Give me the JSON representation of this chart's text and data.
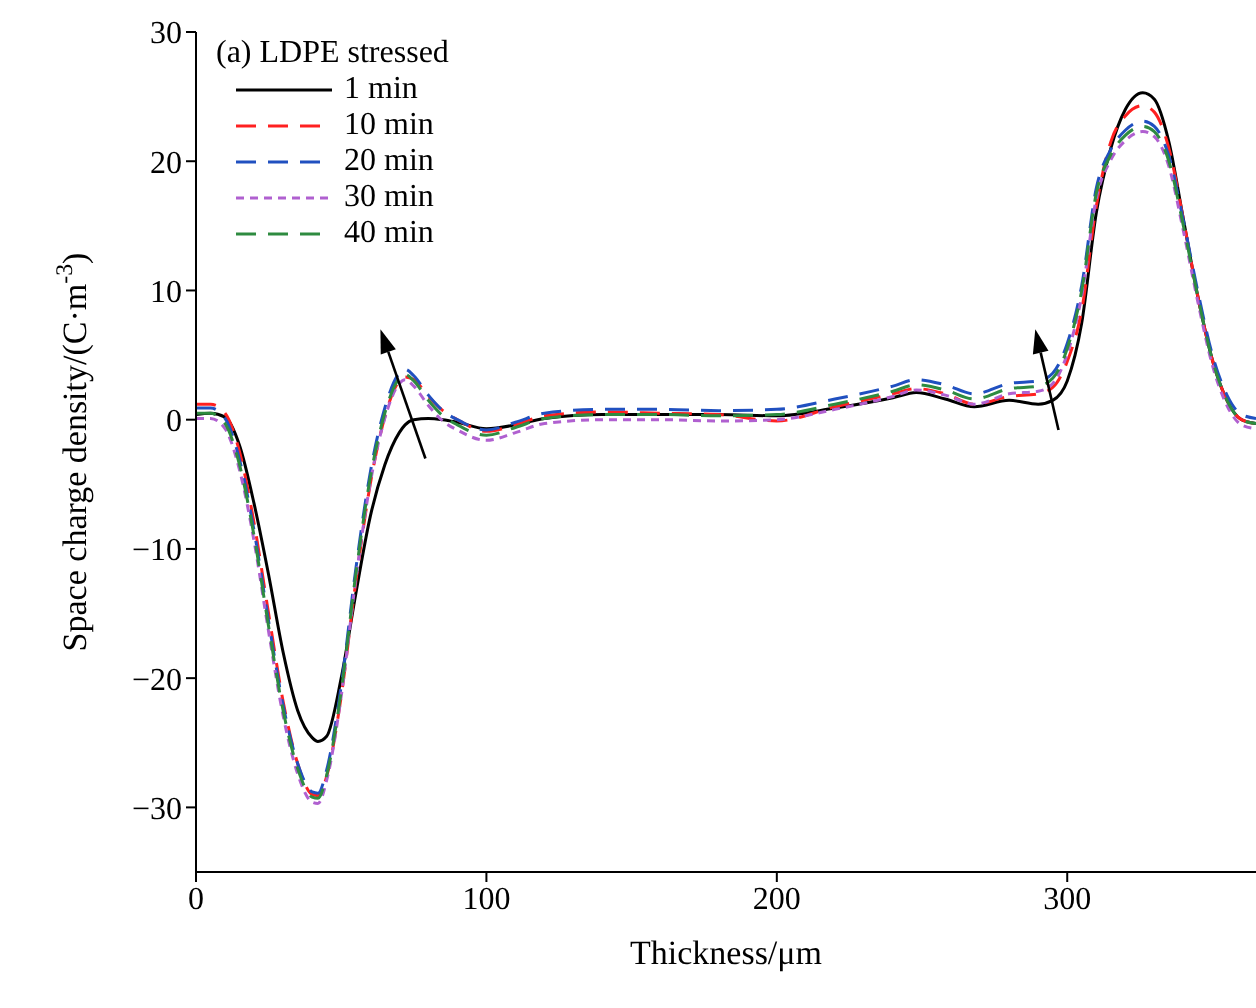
{
  "chart_data": {
    "type": "line",
    "title": "(a) LDPE stressed",
    "xlabel": "Thickness/μm",
    "ylabel": "Space charge density/(C·m$^{-3}$)",
    "x": [
      0,
      5,
      10,
      15,
      20,
      25,
      30,
      35,
      40,
      42,
      45,
      50,
      55,
      60,
      65,
      70,
      72,
      75,
      80,
      85,
      90,
      100,
      110,
      120,
      140,
      160,
      180,
      200,
      220,
      240,
      248,
      258,
      268,
      280,
      290,
      295,
      300,
      305,
      310,
      315,
      320,
      326,
      330,
      335,
      340,
      345,
      350,
      355,
      360,
      365
    ],
    "series": [
      {
        "name": "1 min",
        "color": "#000000",
        "line_style": "solid",
        "values": [
          0.4,
          0.5,
          0.2,
          -2,
          -6.5,
          -12,
          -18,
          -22.5,
          -24.6,
          -24.9,
          -24.5,
          -20,
          -13.5,
          -7.5,
          -3.5,
          -1,
          -0.4,
          0,
          0.1,
          0,
          -0.2,
          -0.7,
          -0.4,
          0.1,
          0.4,
          0.4,
          0.4,
          0.3,
          0.9,
          1.7,
          2.1,
          1.6,
          1,
          1.5,
          1.2,
          1.5,
          3,
          7.5,
          16,
          21,
          24,
          25.3,
          24.8,
          21.5,
          15.5,
          9.5,
          4.6,
          1.5,
          0,
          -0.3
        ]
      },
      {
        "name": "10 min",
        "color": "#ff2020",
        "line_style": "dashed",
        "values": [
          1.2,
          1.2,
          0.5,
          -2.5,
          -8,
          -15,
          -21.8,
          -26.6,
          -29,
          -29.1,
          -27.6,
          -21.4,
          -12.6,
          -5,
          0.2,
          3,
          3.3,
          3.1,
          1.8,
          0.7,
          0,
          -0.9,
          -0.4,
          0.3,
          0.6,
          0.5,
          0.4,
          -0.1,
          1,
          2,
          2.4,
          2,
          1.2,
          1.8,
          2,
          2.5,
          4.5,
          8.5,
          16.5,
          21.5,
          23.5,
          24.3,
          23.8,
          21,
          15.5,
          9.5,
          4.6,
          1.5,
          0,
          -0.3
        ]
      },
      {
        "name": "20 min",
        "color": "#2050c0",
        "line_style": "dashed",
        "values": [
          0.9,
          0.9,
          0.1,
          -3.1,
          -8.6,
          -15.6,
          -22.1,
          -26.6,
          -28.8,
          -28.9,
          -27.1,
          -20.6,
          -11.6,
          -4.1,
          0.9,
          3.6,
          3.9,
          3.4,
          1.9,
          0.7,
          0,
          -0.8,
          -0.2,
          0.5,
          0.8,
          0.8,
          0.7,
          0.8,
          1.6,
          2.6,
          3.1,
          2.7,
          2,
          2.8,
          3,
          3.6,
          5.9,
          10.4,
          17.9,
          20.9,
          22.4,
          23.1,
          22.7,
          20.4,
          15.4,
          9.9,
          5,
          1.9,
          0.4,
          0.1
        ]
      },
      {
        "name": "30 min",
        "color": "#b060d0",
        "line_style": "dotted",
        "values": [
          0.1,
          0.1,
          -0.7,
          -3.9,
          -9.4,
          -16.4,
          -22.9,
          -27.4,
          -29.6,
          -29.7,
          -27.9,
          -21.4,
          -12.4,
          -4.9,
          0.1,
          2.8,
          3.1,
          2.6,
          1.1,
          -0.1,
          -0.8,
          -1.6,
          -1,
          -0.3,
          0,
          0,
          -0.1,
          0,
          0.8,
          1.8,
          2.3,
          1.9,
          1.2,
          2,
          2.2,
          2.8,
          5.1,
          9.6,
          17.1,
          20.1,
          21.6,
          22.3,
          21.9,
          19.6,
          14.6,
          9.1,
          4.2,
          1.1,
          -0.4,
          -0.7
        ]
      },
      {
        "name": "40 min",
        "color": "#2e8b40",
        "line_style": "dashed",
        "values": [
          0.5,
          0.5,
          -0.3,
          -3.5,
          -9,
          -16,
          -22.5,
          -27,
          -29.2,
          -29.3,
          -27.5,
          -21,
          -12,
          -4.5,
          0.5,
          3.2,
          3.5,
          3,
          1.5,
          0.3,
          -0.4,
          -1.2,
          -0.6,
          0.1,
          0.4,
          0.4,
          0.3,
          0.4,
          1.2,
          2.2,
          2.7,
          2.3,
          1.6,
          2.4,
          2.6,
          3.2,
          5.5,
          10,
          17.5,
          20.5,
          22,
          22.7,
          22.3,
          20,
          15,
          9.5,
          4.6,
          1.5,
          0,
          -0.3
        ]
      }
    ],
    "xlim": [
      0,
      365
    ],
    "xticks": [
      0,
      100,
      200,
      300
    ],
    "ylim": [
      -35,
      30
    ],
    "yticks": [
      -30,
      -20,
      -10,
      0,
      10,
      20,
      30
    ],
    "grid": false,
    "legend": "top left",
    "marker": "none"
  }
}
